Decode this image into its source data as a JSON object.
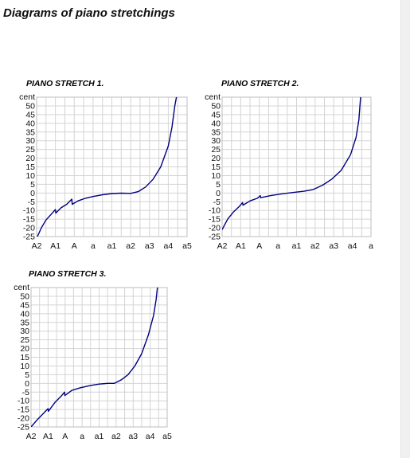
{
  "page": {
    "title": "Diagrams of piano stretchings"
  },
  "chart_data": [
    {
      "type": "line",
      "title": "PIANO STRETCH 1.",
      "ylabel": "cent",
      "xlabel": "",
      "categories": [
        "A2",
        "A1",
        "A",
        "a",
        "a1",
        "a2",
        "a3",
        "a4",
        "a5"
      ],
      "y_ticks": [
        50,
        45,
        40,
        35,
        30,
        25,
        20,
        15,
        10,
        5,
        0,
        -5,
        -10,
        -15,
        -20,
        -25
      ],
      "ylim": [
        -25,
        55
      ],
      "xlim": [
        0,
        8
      ],
      "grid": true,
      "line_color": "#000080",
      "series": [
        {
          "points": [
            [
              0,
              -26
            ],
            [
              0.25,
              -20
            ],
            [
              0.5,
              -15.5
            ],
            [
              0.75,
              -12.5
            ],
            [
              1,
              -9.5
            ],
            [
              1.02,
              -11.5
            ],
            [
              1.3,
              -8.5
            ],
            [
              1.6,
              -6.5
            ],
            [
              1.87,
              -3.5
            ],
            [
              1.89,
              -6.5
            ],
            [
              2.2,
              -4.5
            ],
            [
              2.6,
              -3
            ],
            [
              3,
              -2
            ],
            [
              3.5,
              -1
            ],
            [
              4,
              -0.3
            ],
            [
              4.5,
              -0.1
            ],
            [
              5,
              -0.2
            ],
            [
              5.4,
              0.8
            ],
            [
              5.8,
              3.5
            ],
            [
              6.2,
              8
            ],
            [
              6.6,
              15
            ],
            [
              7,
              27
            ],
            [
              7.2,
              38
            ],
            [
              7.35,
              50
            ],
            [
              7.45,
              56
            ]
          ]
        }
      ]
    },
    {
      "type": "line",
      "title": "PIANO STRETCH 2.",
      "ylabel": "cent",
      "xlabel": "",
      "categories": [
        "A2",
        "A1",
        "A",
        "a",
        "a1",
        "a2",
        "a3",
        "a4",
        "a"
      ],
      "y_ticks": [
        50,
        45,
        40,
        35,
        30,
        25,
        20,
        15,
        10,
        5,
        0,
        -5,
        -10,
        -15,
        -20,
        -25
      ],
      "ylim": [
        -25,
        55
      ],
      "xlim": [
        0,
        8
      ],
      "grid": true,
      "line_color": "#000080",
      "series": [
        {
          "points": [
            [
              0,
              -21
            ],
            [
              0.3,
              -15
            ],
            [
              0.6,
              -11
            ],
            [
              0.9,
              -8
            ],
            [
              1.1,
              -5.5
            ],
            [
              1.12,
              -7
            ],
            [
              1.5,
              -4.5
            ],
            [
              1.9,
              -3
            ],
            [
              2.05,
              -1.5
            ],
            [
              2.07,
              -2.7
            ],
            [
              2.6,
              -1.5
            ],
            [
              3.2,
              -0.5
            ],
            [
              3.8,
              0.3
            ],
            [
              4.4,
              1
            ],
            [
              4.9,
              2
            ],
            [
              5.4,
              4.5
            ],
            [
              5.9,
              8
            ],
            [
              6.4,
              13
            ],
            [
              6.9,
              22
            ],
            [
              7.2,
              32
            ],
            [
              7.35,
              42
            ],
            [
              7.45,
              56
            ]
          ]
        }
      ]
    },
    {
      "type": "line",
      "title": "PIANO STRETCH 3.",
      "ylabel": "cent",
      "xlabel": "",
      "categories": [
        "A2",
        "A1",
        "A",
        "a",
        "a1",
        "a2",
        "a3",
        "a4",
        "a5"
      ],
      "y_ticks": [
        50,
        45,
        40,
        35,
        30,
        25,
        20,
        15,
        10,
        5,
        0,
        -5,
        -10,
        -15,
        -20,
        -25
      ],
      "ylim": [
        -25,
        55
      ],
      "xlim": [
        0,
        8
      ],
      "grid": true,
      "line_color": "#000080",
      "series": [
        {
          "points": [
            [
              0,
              -25
            ],
            [
              0.4,
              -20.5
            ],
            [
              0.8,
              -16.5
            ],
            [
              1,
              -14.5
            ],
            [
              1.02,
              -16
            ],
            [
              1.4,
              -11
            ],
            [
              1.8,
              -7
            ],
            [
              1.97,
              -5
            ],
            [
              1.99,
              -7
            ],
            [
              2.4,
              -4
            ],
            [
              2.9,
              -2.5
            ],
            [
              3.5,
              -1.2
            ],
            [
              4,
              -0.4
            ],
            [
              4.5,
              0
            ],
            [
              4.9,
              0
            ],
            [
              5.3,
              2
            ],
            [
              5.7,
              5
            ],
            [
              6.1,
              10
            ],
            [
              6.5,
              17
            ],
            [
              6.9,
              28
            ],
            [
              7.2,
              39
            ],
            [
              7.35,
              48
            ],
            [
              7.45,
              57
            ]
          ]
        }
      ]
    }
  ]
}
